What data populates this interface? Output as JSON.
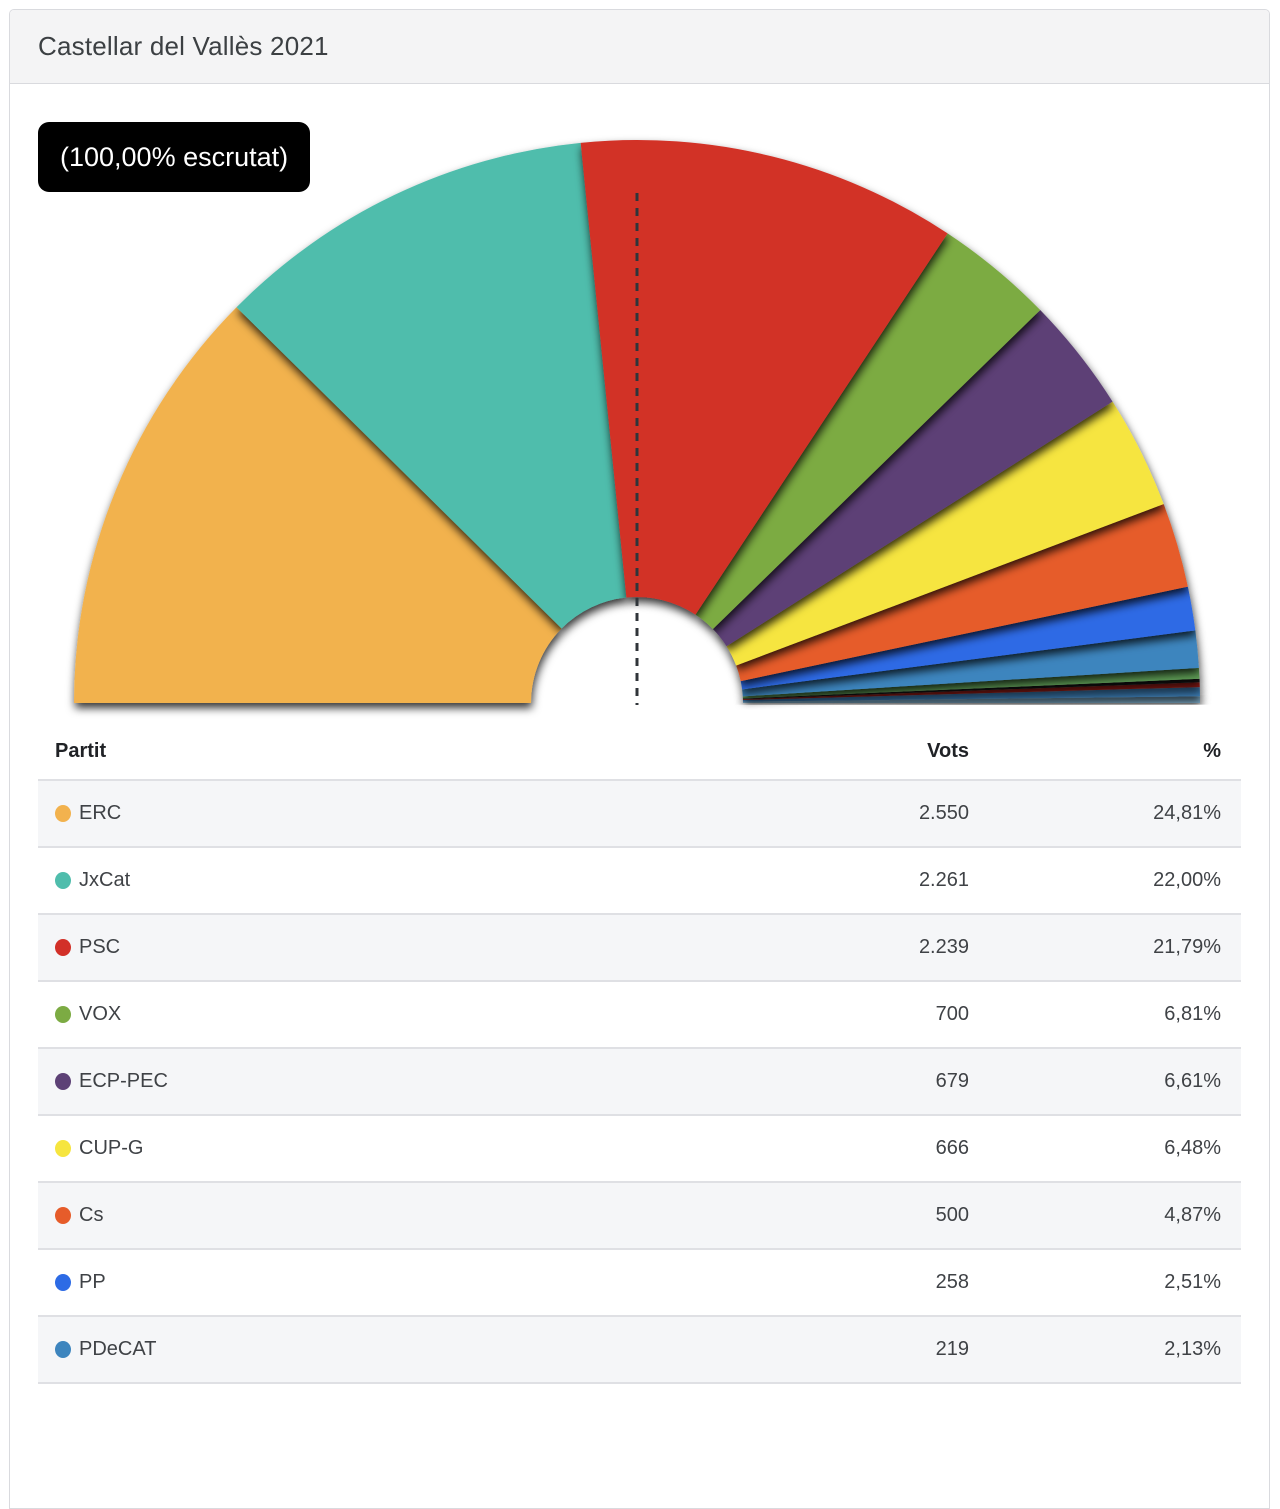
{
  "header": {
    "title": "Castellar del Vallès 2021"
  },
  "chart": {
    "badge": "(100,00% escrutat)",
    "marker_color": "#30353a"
  },
  "chart_data": {
    "type": "pie",
    "variant": "half-donut parliament arc, 180 degrees",
    "title": "Castellar del Vallès 2021",
    "annotation": "(100,00% escrutat)",
    "majority_marker": "vertical dashed line at 50% (top center)",
    "legend_position": "table below chart",
    "segments": [
      {
        "name": "ERC",
        "votes": 2550,
        "percent": 24.81,
        "color": "#F2B24E"
      },
      {
        "name": "JxCat",
        "votes": 2261,
        "percent": 22.0,
        "color": "#4FBDAC"
      },
      {
        "name": "PSC",
        "votes": 2239,
        "percent": 21.79,
        "color": "#D23028"
      },
      {
        "name": "VOX",
        "votes": 700,
        "percent": 6.81,
        "color": "#7CAB43"
      },
      {
        "name": "ECP-PEC",
        "votes": 679,
        "percent": 6.61,
        "color": "#5D4176"
      },
      {
        "name": "CUP-G",
        "votes": 666,
        "percent": 6.48,
        "color": "#F6E53F"
      },
      {
        "name": "Cs",
        "votes": 500,
        "percent": 4.87,
        "color": "#E65C2A"
      },
      {
        "name": "PP",
        "votes": 258,
        "percent": 2.51,
        "color": "#2D6BE5"
      },
      {
        "name": "PDeCAT",
        "votes": 219,
        "percent": 2.13,
        "color": "#3D85BE"
      },
      {
        "name": "other-1",
        "percent": 0.62,
        "color": "#5F9E57"
      },
      {
        "name": "other-2",
        "percent": 0.2,
        "color": "#151515"
      },
      {
        "name": "other-3",
        "percent": 0.27,
        "color": "#9C1B14"
      },
      {
        "name": "other-4",
        "percent": 0.52,
        "color": "#3C7FB8"
      },
      {
        "name": "other-5",
        "percent": 0.38,
        "color": "#85B6D4"
      }
    ]
  },
  "table": {
    "columns": [
      "Partit",
      "Vots",
      "%"
    ],
    "rows": [
      {
        "party": "ERC",
        "votes": "2.550",
        "percent": "24,81%",
        "color": "#F2B24E"
      },
      {
        "party": "JxCat",
        "votes": "2.261",
        "percent": "22,00%",
        "color": "#4FBDAC"
      },
      {
        "party": "PSC",
        "votes": "2.239",
        "percent": "21,79%",
        "color": "#D23028"
      },
      {
        "party": "VOX",
        "votes": "700",
        "percent": "6,81%",
        "color": "#7CAB43"
      },
      {
        "party": "ECP-PEC",
        "votes": "679",
        "percent": "6,61%",
        "color": "#5D4176"
      },
      {
        "party": "CUP-G",
        "votes": "666",
        "percent": "6,48%",
        "color": "#F6E53F"
      },
      {
        "party": "Cs",
        "votes": "500",
        "percent": "4,87%",
        "color": "#E65C2A"
      },
      {
        "party": "PP",
        "votes": "258",
        "percent": "2,51%",
        "color": "#2D6BE5"
      },
      {
        "party": "PDeCAT",
        "votes": "219",
        "percent": "2,13%",
        "color": "#3D85BE"
      }
    ]
  }
}
